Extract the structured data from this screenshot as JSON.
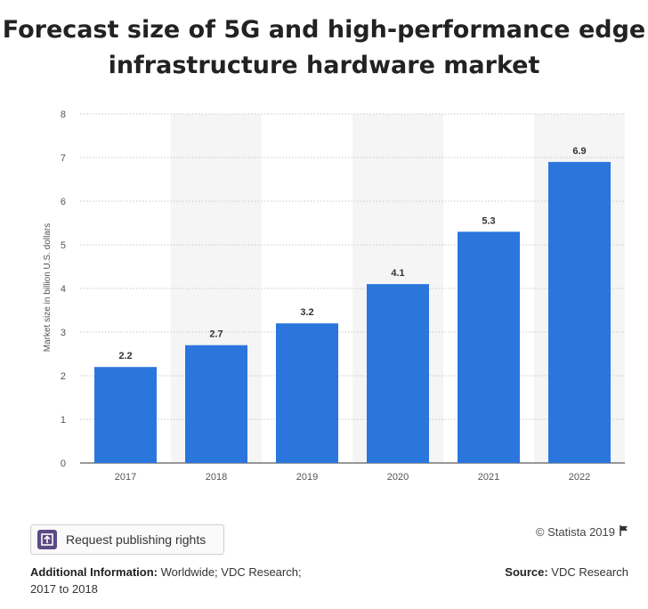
{
  "chart_data": {
    "type": "bar",
    "title": "Forecast size of 5G and high-performance edge infrastructure hardware market",
    "categories": [
      "2017",
      "2018",
      "2019",
      "2020",
      "2021",
      "2022"
    ],
    "values": [
      2.2,
      2.7,
      3.2,
      4.1,
      5.3,
      6.9
    ],
    "value_labels": [
      "2.2",
      "2.7",
      "3.2",
      "4.1",
      "5.3",
      "6.9"
    ],
    "xlabel": "",
    "ylabel": "Market size in billion U.S. dollars",
    "ylim": [
      0,
      8
    ],
    "yticks": [
      0,
      1,
      2,
      3,
      4,
      5,
      6,
      7,
      8
    ],
    "grid": true,
    "bar_color": "#2a76dd",
    "band_color": "#f5f5f5"
  },
  "footer": {
    "publish_button_label": "Request publishing rights",
    "copyright": "© Statista 2019",
    "additional_info_label": "Additional Information:",
    "additional_info_text": " Worldwide; VDC Research; 2017 to 2018",
    "source_label": "Source:",
    "source_text": " VDC Research"
  }
}
